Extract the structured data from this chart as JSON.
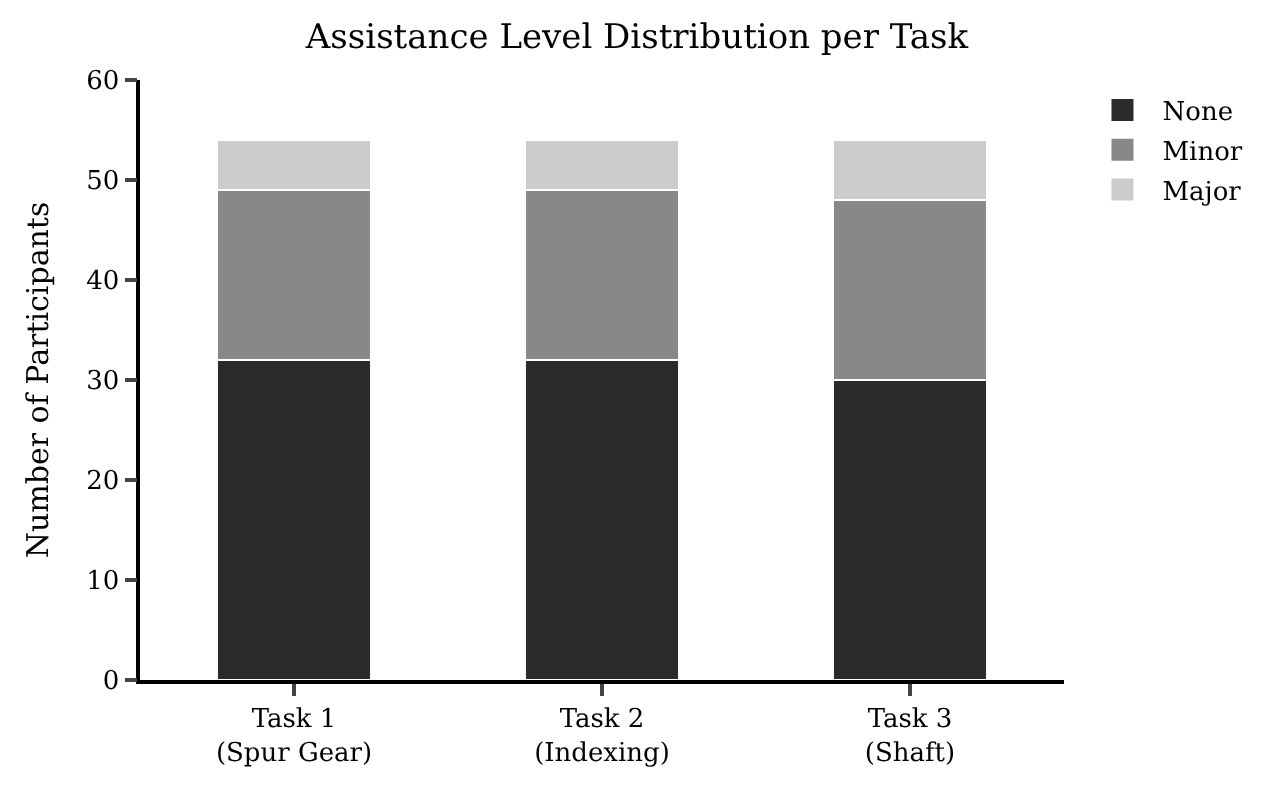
{
  "chart_data": {
    "type": "bar",
    "title": "Assistance Level Distribution per Task",
    "ylabel": "Number of Participants",
    "categories": [
      "Task 1\n(Spur Gear)",
      "Task 2\n(Indexing)",
      "Task 3\n(Shaft)"
    ],
    "stacked": true,
    "series": [
      {
        "name": "None",
        "color": "#2b2b2b",
        "values": [
          32,
          32,
          30
        ]
      },
      {
        "name": "Minor",
        "color": "#888888",
        "values": [
          17,
          17,
          18
        ]
      },
      {
        "name": "Major",
        "color": "#cccccc",
        "values": [
          5,
          5,
          6
        ]
      }
    ],
    "ylim": [
      0,
      60
    ],
    "yticks": [
      0,
      10,
      20,
      30,
      40,
      50,
      60
    ],
    "legend": "right"
  }
}
